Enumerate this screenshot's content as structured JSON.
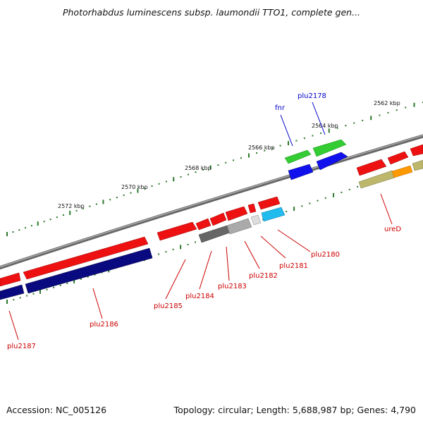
{
  "title": "Photorhabdus luminescens subsp. laumondii TTO1, complete gen...",
  "footer": {
    "accession": "Accession: NC_005126",
    "info": "Topology: circular; Length: 5,688,987 bp; Genes: 4,790"
  },
  "scale_labels": [
    "2562 kbp",
    "2564 kbp",
    "2566 kbp",
    "2568 kbp",
    "2570 kbp",
    "2572 kbp"
  ],
  "genes_upper": [
    {
      "name": "fnr",
      "color": "#0000cc"
    },
    {
      "name": "plu2178",
      "color": "#0000cc"
    }
  ],
  "genes_lower": [
    {
      "name": "ureD",
      "color": "#cc0000"
    },
    {
      "name": "plu2180",
      "color": "#cc0000"
    },
    {
      "name": "plu2181",
      "color": "#cc0000"
    },
    {
      "name": "plu2182",
      "color": "#cc0000"
    },
    {
      "name": "plu2183",
      "color": "#cc0000"
    },
    {
      "name": "plu2184",
      "color": "#cc0000"
    },
    {
      "name": "plu2185",
      "color": "#cc0000"
    },
    {
      "name": "plu2186",
      "color": "#cc0000"
    },
    {
      "name": "plu2187",
      "color": "#cc0000"
    }
  ],
  "colors": {
    "backbone": "#7a7a7a",
    "cds_red": "#ee1111",
    "cds_green": "#33cc33",
    "cds_blue": "#1111ee",
    "cds_navy": "#0a0a80",
    "cds_gray_dark": "#666666",
    "cds_gray_mid": "#999999",
    "cds_gray_light": "#cccccc",
    "cds_cyan": "#22bbee",
    "cds_khaki": "#bdb76b",
    "cds_orange": "#ff9900",
    "tick": "#2b7a2b"
  }
}
